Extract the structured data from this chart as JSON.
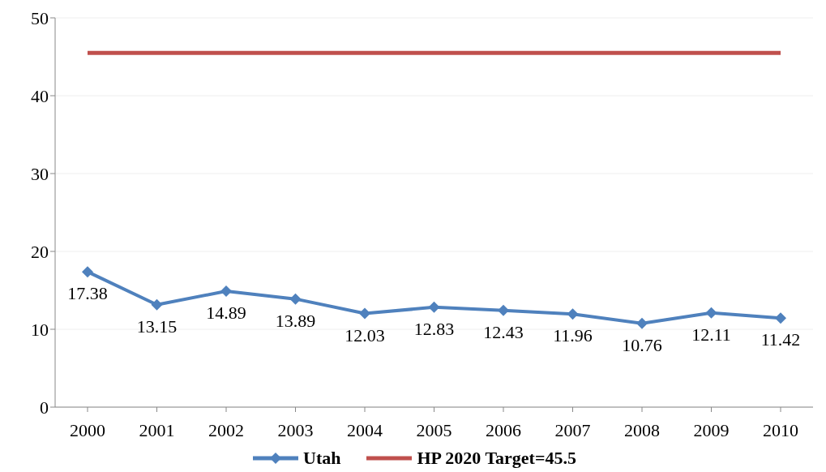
{
  "chart_data": {
    "type": "line",
    "categories": [
      "2000",
      "2001",
      "2002",
      "2003",
      "2004",
      "2005",
      "2006",
      "2007",
      "2008",
      "2009",
      "2010"
    ],
    "series": [
      {
        "name": "Utah",
        "color": "#4f81bd",
        "marker": "diamond",
        "values": [
          17.38,
          13.15,
          14.89,
          13.89,
          12.03,
          12.83,
          12.43,
          11.96,
          10.76,
          12.11,
          11.42
        ],
        "value_labels": [
          "17.38",
          "13.15",
          "14.89",
          "13.89",
          "12.03",
          "12.83",
          "12.43",
          "11.96",
          "10.76",
          "12.11",
          "11.42"
        ]
      },
      {
        "name": "HP 2020 Target=45.5",
        "color": "#c0504d",
        "marker": "none",
        "values": [
          45.5,
          45.5,
          45.5,
          45.5,
          45.5,
          45.5,
          45.5,
          45.5,
          45.5,
          45.5,
          45.5
        ]
      }
    ],
    "ylim": [
      0,
      50
    ],
    "yticks": [
      0,
      10,
      20,
      30,
      40,
      50
    ],
    "grid": "y",
    "legend": "bottom"
  }
}
